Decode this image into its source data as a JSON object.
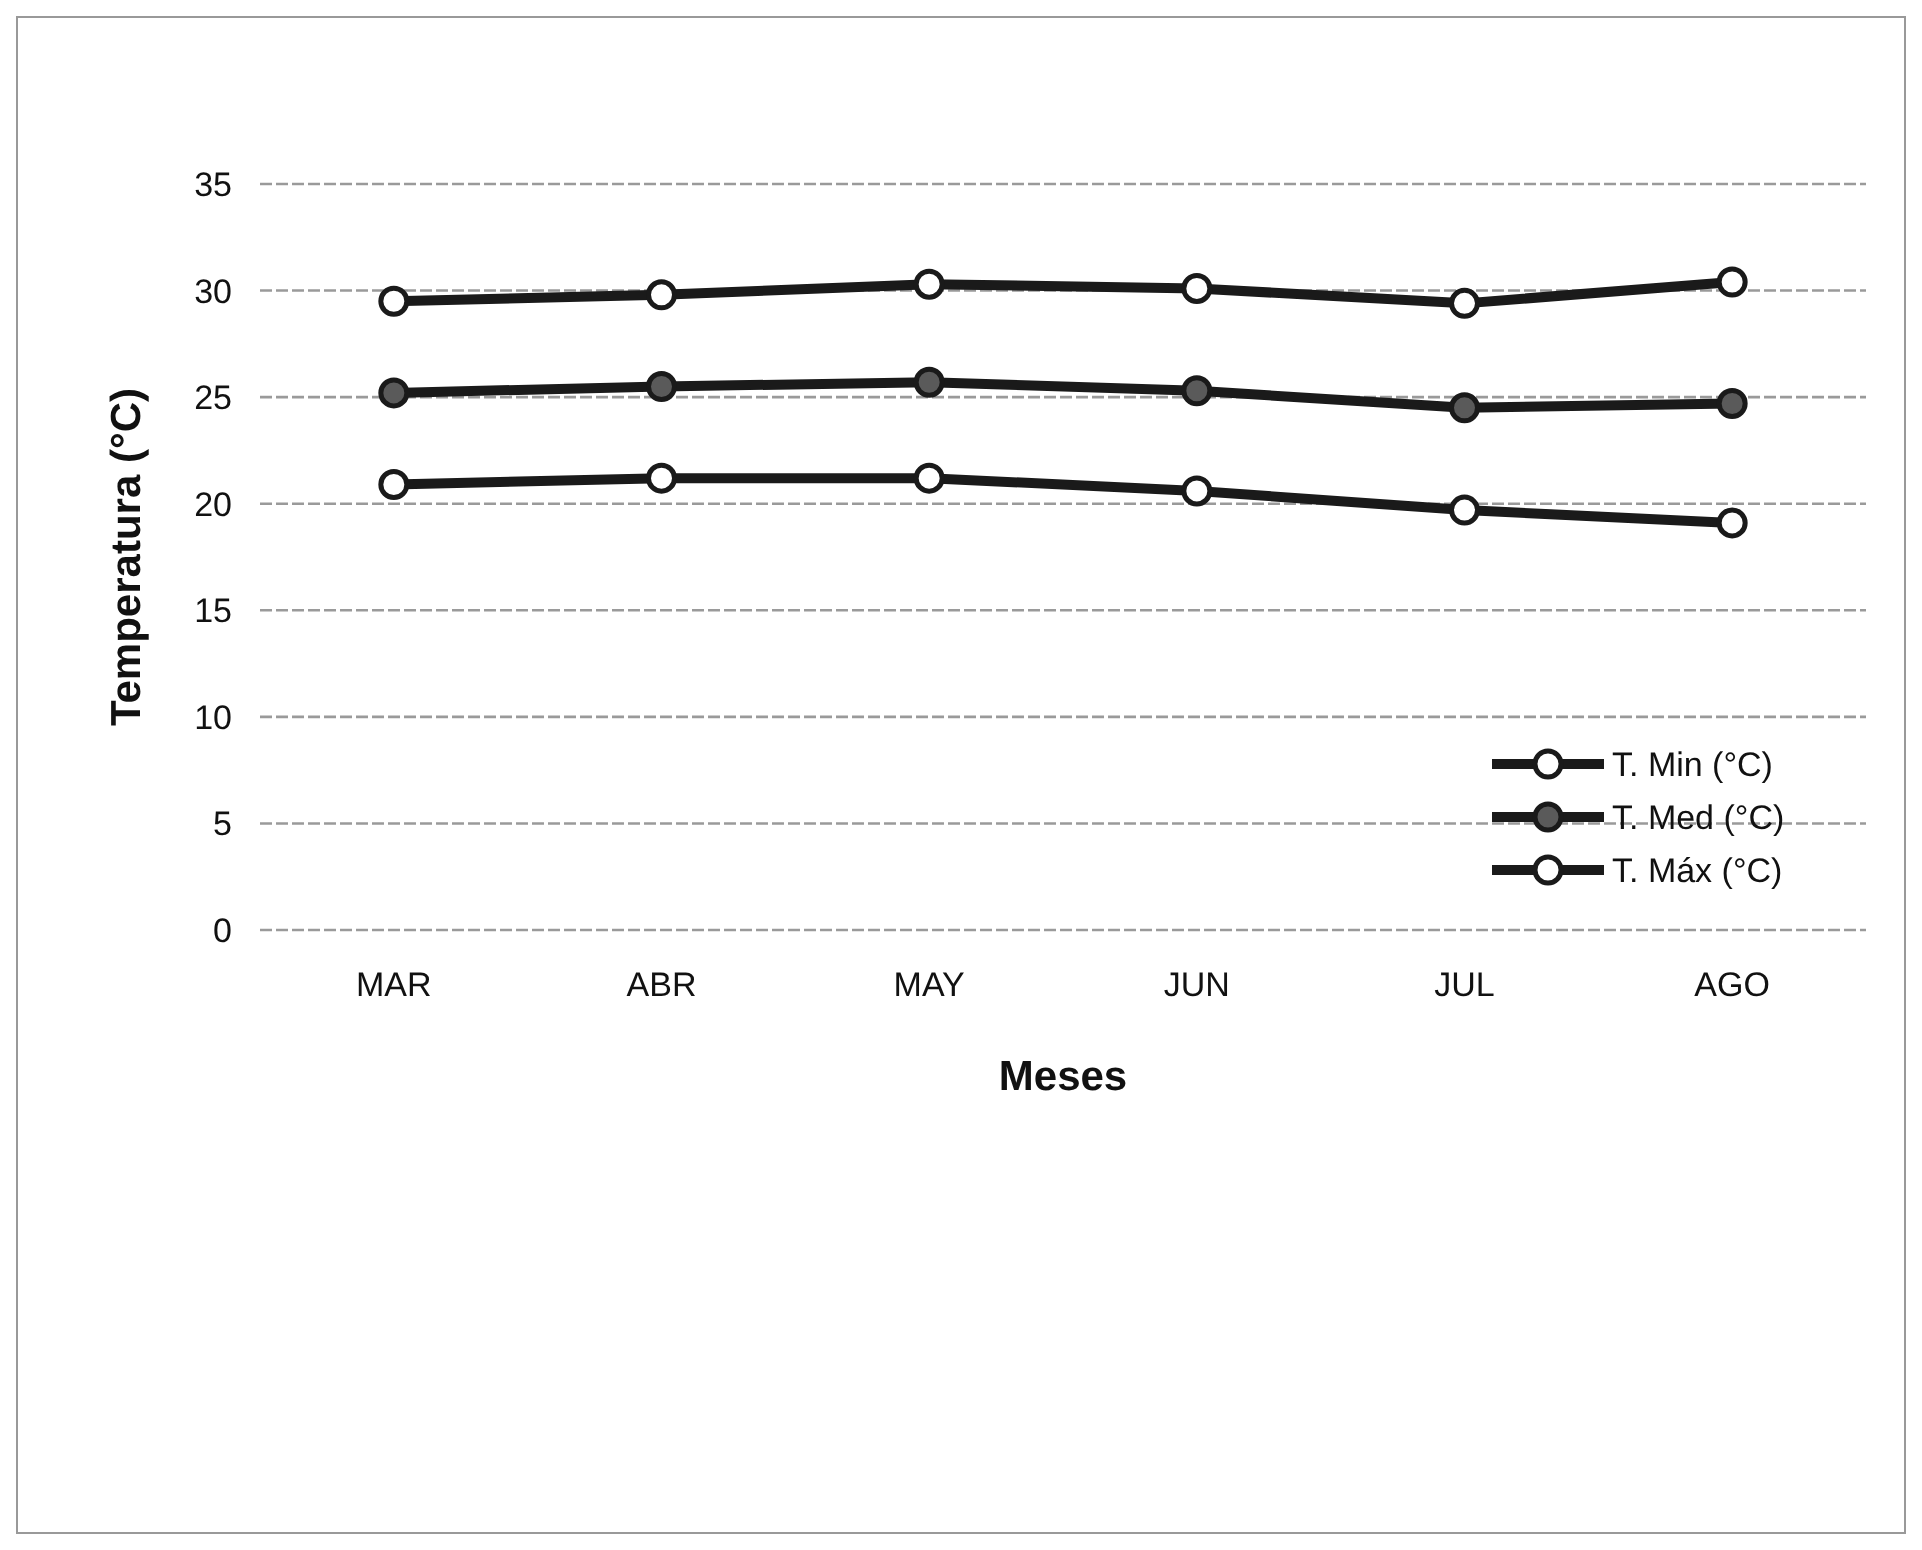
{
  "chart_data": {
    "type": "line",
    "xlabel": "Meses",
    "ylabel": "Temperatura (°C)",
    "categories": [
      "MAR",
      "ABR",
      "MAY",
      "JUN",
      "JUL",
      "AGO"
    ],
    "series": [
      {
        "name": "T. Min (°C)",
        "color": "#1a1a1a",
        "values": [
          20.9,
          21.2,
          21.2,
          20.6,
          19.7,
          19.1
        ]
      },
      {
        "name": "T. Med (°C)",
        "color": "#1a1a1a",
        "values": [
          25.2,
          25.5,
          25.7,
          25.3,
          24.5,
          24.7
        ]
      },
      {
        "name": "T. Máx (°C)",
        "color": "#1a1a1a",
        "values": [
          29.5,
          29.8,
          30.3,
          30.1,
          29.4,
          30.4
        ]
      }
    ],
    "ylim": [
      0,
      35
    ],
    "yticks": [
      0,
      5,
      10,
      15,
      20,
      25,
      30,
      35
    ],
    "grid": "y",
    "legend": "right",
    "marker": "circle",
    "line_style": "solid"
  }
}
